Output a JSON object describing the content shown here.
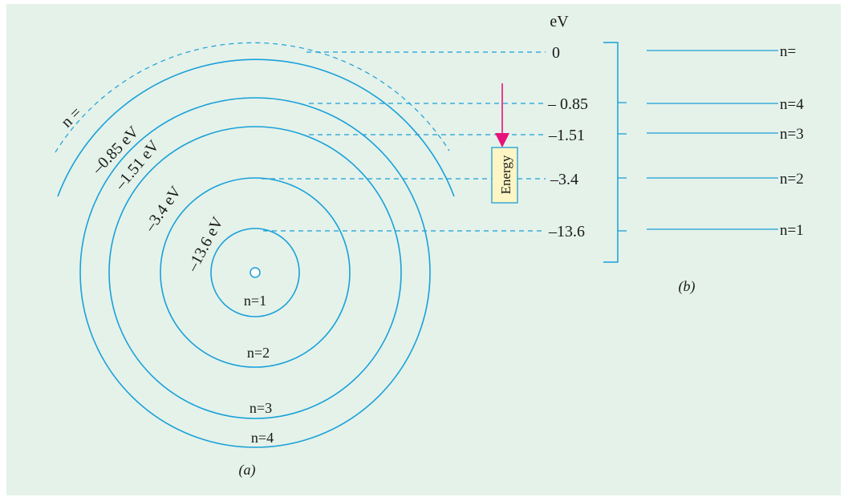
{
  "colors": {
    "background": "#e4f2ea",
    "line": "#1aa0d8",
    "arrow": "#e8127a",
    "box_fill": "#fdf5c4"
  },
  "panel_a": {
    "caption": "(a)",
    "shell_labels": [
      "n=1",
      "n=2",
      "n=3",
      "n=4"
    ],
    "orbit_energy_labels": [
      "–13.6 eV",
      "–3.4 eV",
      "–1.51 eV",
      "–0.85 eV"
    ],
    "infinity_label": "n ="
  },
  "panel_b": {
    "caption": "(b)",
    "unit_label": "eV",
    "energy_values": [
      "0",
      "– 0.85",
      "–1.51",
      "–3.4",
      "–13.6"
    ],
    "level_labels": [
      "n=",
      "n=4",
      "n=3",
      "n=2",
      "n=1"
    ],
    "energy_box_label": "Energy"
  }
}
